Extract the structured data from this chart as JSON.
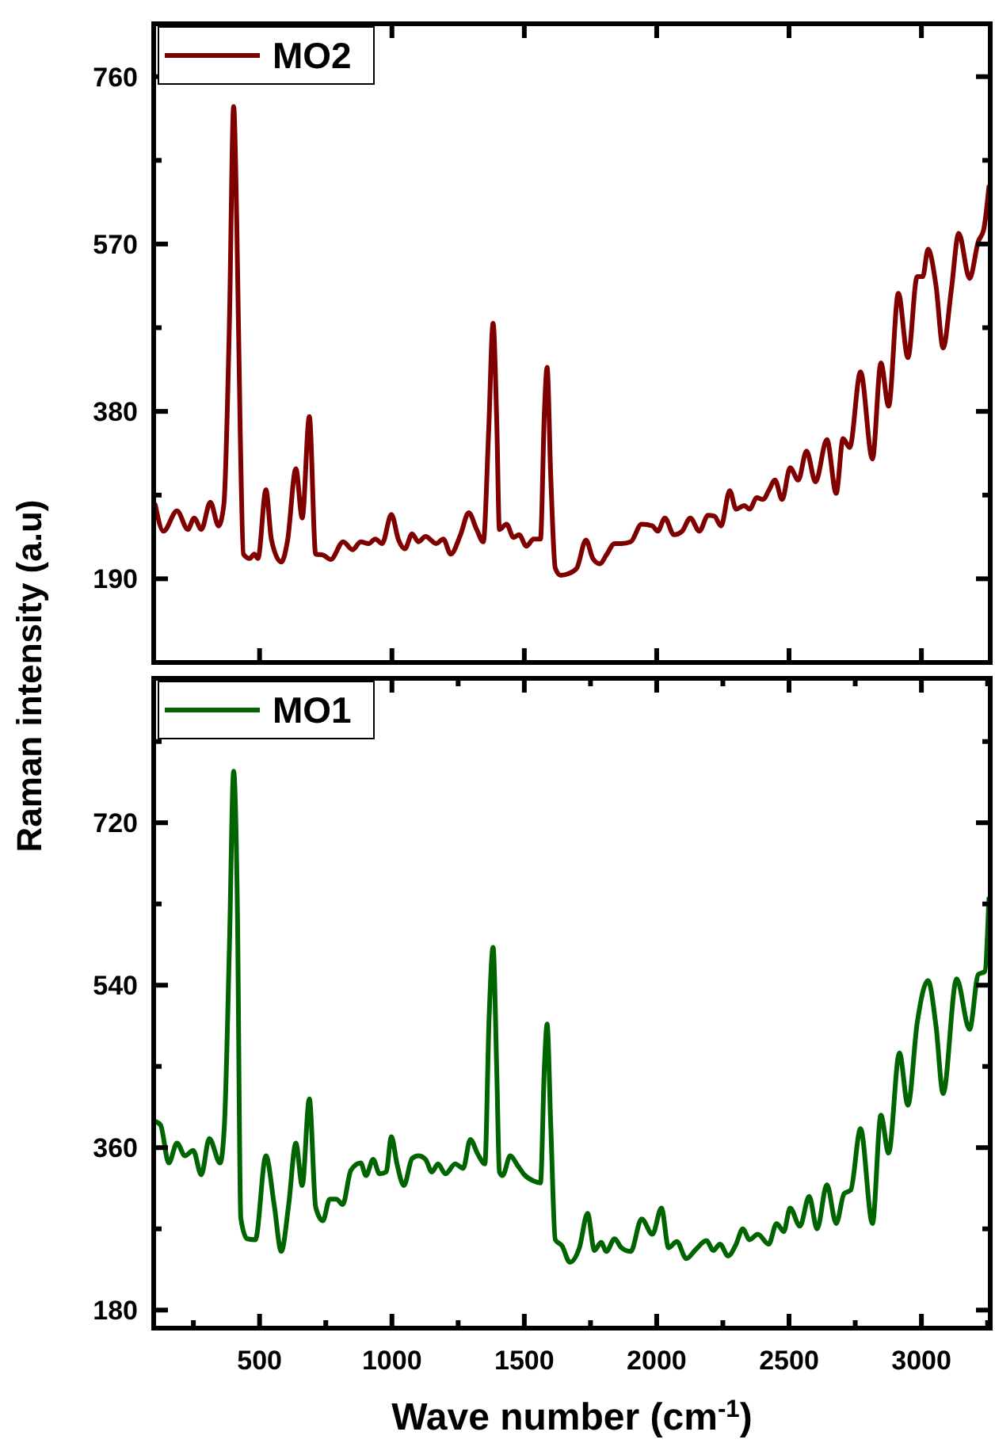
{
  "chart_data": [
    {
      "type": "line",
      "ylabel": "Raman intensity (a.u)",
      "legend": "top left",
      "tick_labels": "y",
      "xlim": [
        100,
        3260
      ],
      "xticks": [
        {
          "value": 500,
          "label": null
        },
        {
          "value": 1000,
          "label": null
        },
        {
          "value": 1500,
          "label": null
        },
        {
          "value": 2000,
          "label": null
        },
        {
          "value": 2500,
          "label": null
        },
        {
          "value": 3000,
          "label": null
        }
      ],
      "ylim": [
        95,
        820
      ],
      "yticks": [
        190,
        {
          "value": 285,
          "label": null
        },
        380,
        {
          "value": 475,
          "label": null
        },
        570,
        {
          "value": 665,
          "label": null
        },
        760
      ],
      "x": [
        106,
        137,
        188,
        229,
        253,
        280,
        314,
        345,
        365,
        386,
        402,
        414,
        427,
        439,
        463,
        480,
        494,
        524,
        545,
        582,
        606,
        637,
        661,
        688,
        712,
        739,
        769,
        816,
        851,
        882,
        912,
        937,
        963,
        998,
        1025,
        1049,
        1076,
        1100,
        1127,
        1167,
        1194,
        1222,
        1259,
        1290,
        1320,
        1345,
        1365,
        1382,
        1396,
        1406,
        1433,
        1459,
        1480,
        1508,
        1535,
        1561,
        1576,
        1586,
        1600,
        1617,
        1637,
        1668,
        1698,
        1733,
        1759,
        1786,
        1810,
        1841,
        1867,
        1902,
        1943,
        1984,
        2004,
        2031,
        2065,
        2096,
        2127,
        2161,
        2194,
        2218,
        2243,
        2276,
        2300,
        2331,
        2351,
        2378,
        2402,
        2423,
        2447,
        2474,
        2504,
        2535,
        2566,
        2600,
        2643,
        2678,
        2704,
        2729,
        2770,
        2815,
        2847,
        2876,
        2913,
        2949,
        2984,
        3005,
        3025,
        3055,
        3082,
        3113,
        3141,
        3182,
        3215,
        3235,
        3255
      ],
      "series": [
        {
          "name": "MO2",
          "color": "#800000",
          "values": [
            274,
            244,
            267,
            246,
            259,
            246,
            277,
            250,
            274,
            480,
            726,
            592,
            355,
            218,
            213,
            218,
            213,
            291,
            234,
            209,
            234,
            315,
            259,
            374,
            218,
            217,
            212,
            232,
            223,
            232,
            230,
            235,
            230,
            263,
            234,
            224,
            241,
            232,
            238,
            230,
            235,
            218,
            240,
            265,
            246,
            232,
            355,
            480,
            367,
            246,
            252,
            237,
            240,
            227,
            235,
            235,
            380,
            430,
            305,
            202,
            194,
            196,
            202,
            234,
            213,
            207,
            217,
            230,
            230,
            232,
            252,
            250,
            244,
            259,
            240,
            244,
            259,
            244,
            262,
            261,
            250,
            290,
            269,
            273,
            269,
            282,
            280,
            290,
            302,
            280,
            316,
            302,
            335,
            300,
            348,
            287,
            349,
            339,
            425,
            326,
            435,
            386,
            514,
            441,
            533,
            533,
            564,
            523,
            452,
            518,
            582,
            531,
            573,
            586,
            635
          ]
        }
      ]
    },
    {
      "type": "line",
      "xlabel": "Wave number (cm$^{-1}$)",
      "legend": "top left",
      "xlim": [
        100,
        3260
      ],
      "xticks": [
        {
          "value": 250,
          "label": null
        },
        500,
        {
          "value": 750,
          "label": null
        },
        1000,
        {
          "value": 1250,
          "label": null
        },
        1500,
        {
          "value": 1750,
          "label": null
        },
        2000,
        {
          "value": 2250,
          "label": null
        },
        2500,
        {
          "value": 2750,
          "label": null
        },
        3000,
        {
          "value": 3250,
          "label": null
        }
      ],
      "ylim": [
        160,
        880
      ],
      "yticks": [
        180,
        {
          "value": 270,
          "label": null
        },
        360,
        {
          "value": 450,
          "label": null
        },
        540,
        {
          "value": 630,
          "label": null
        },
        720,
        {
          "value": 810,
          "label": null
        }
      ],
      "x": [
        106,
        126,
        157,
        188,
        218,
        249,
        280,
        310,
        351,
        367,
        386,
        402,
        416,
        429,
        453,
        484,
        524,
        555,
        582,
        610,
        637,
        661,
        688,
        712,
        739,
        765,
        790,
        814,
        845,
        882,
        902,
        929,
        953,
        978,
        998,
        1019,
        1045,
        1076,
        1100,
        1127,
        1151,
        1174,
        1202,
        1239,
        1269,
        1296,
        1324,
        1351,
        1367,
        1382,
        1396,
        1406,
        1418,
        1447,
        1473,
        1500,
        1535,
        1561,
        1576,
        1586,
        1600,
        1617,
        1643,
        1672,
        1708,
        1739,
        1765,
        1790,
        1810,
        1841,
        1867,
        1902,
        1943,
        1984,
        2018,
        2045,
        2076,
        2112,
        2147,
        2188,
        2214,
        2239,
        2270,
        2300,
        2325,
        2351,
        2382,
        2423,
        2453,
        2480,
        2504,
        2541,
        2576,
        2606,
        2643,
        2678,
        2708,
        2733,
        2770,
        2815,
        2847,
        2876,
        2917,
        2949,
        2984,
        3025,
        3055,
        3082,
        3133,
        3182,
        3215,
        3239,
        3255
      ],
      "series": [
        {
          "name": "MO1",
          "color": "#006400",
          "values": [
            389,
            385,
            343,
            365,
            351,
            357,
            330,
            370,
            343,
            384,
            582,
            777,
            630,
            282,
            259,
            258,
            351,
            297,
            245,
            297,
            365,
            318,
            414,
            294,
            279,
            303,
            303,
            297,
            335,
            343,
            329,
            347,
            331,
            333,
            372,
            342,
            318,
            348,
            351,
            347,
            333,
            342,
            331,
            342,
            337,
            369,
            353,
            342,
            504,
            582,
            444,
            333,
            329,
            351,
            341,
            330,
            323,
            321,
            450,
            497,
            384,
            258,
            251,
            233,
            249,
            287,
            246,
            255,
            245,
            259,
            249,
            245,
            281,
            264,
            293,
            249,
            256,
            237,
            247,
            257,
            246,
            253,
            240,
            253,
            270,
            258,
            264,
            253,
            276,
            267,
            293,
            273,
            306,
            270,
            319,
            276,
            309,
            313,
            381,
            276,
            396,
            354,
            465,
            407,
            498,
            545,
            495,
            420,
            547,
            491,
            552,
            555,
            636
          ]
        }
      ]
    }
  ]
}
